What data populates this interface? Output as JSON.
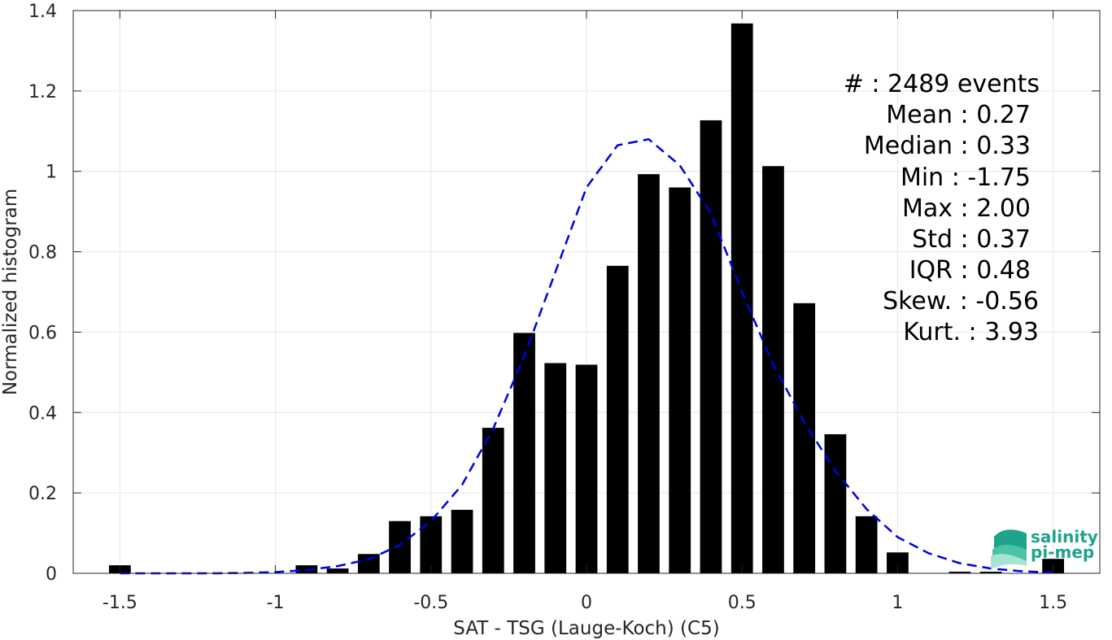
{
  "chart_data": {
    "type": "bar",
    "xlabel": "SAT - TSG (Lauge-Koch) (C5)",
    "ylabel": "Normalized histogram",
    "xlim": [
      -1.65,
      1.65
    ],
    "ylim": [
      0,
      1.4
    ],
    "xticks": [
      -1.5,
      -1,
      -0.5,
      0,
      0.5,
      1,
      1.5
    ],
    "xtick_labels": [
      "-1.5",
      "-1",
      "-0.5",
      "0",
      "0.5",
      "1",
      "1.5"
    ],
    "yticks": [
      0,
      0.2,
      0.4,
      0.6,
      0.8,
      1,
      1.2,
      1.4
    ],
    "ytick_labels": [
      "0",
      "0.2",
      "0.4",
      "0.6",
      "0.8",
      "1",
      "1.2",
      "1.4"
    ],
    "grid": true,
    "bar_width": 0.07,
    "series": [
      {
        "kind": "histogram",
        "color": "#000000",
        "x": [
          -1.5,
          -0.9,
          -0.8,
          -0.7,
          -0.6,
          -0.5,
          -0.4,
          -0.3,
          -0.2,
          -0.1,
          0.0,
          0.1,
          0.2,
          0.3,
          0.4,
          0.5,
          0.6,
          0.7,
          0.8,
          0.9,
          1.0,
          1.2,
          1.3,
          1.5
        ],
        "values": [
          0.02,
          0.02,
          0.012,
          0.048,
          0.13,
          0.142,
          0.158,
          0.362,
          0.598,
          0.523,
          0.519,
          0.765,
          0.993,
          0.96,
          1.127,
          1.368,
          1.013,
          0.672,
          0.346,
          0.142,
          0.052,
          0.004,
          0.004,
          0.036
        ]
      },
      {
        "kind": "fit-line",
        "style": "dashed",
        "color": "#0000e6",
        "x": [
          -1.5,
          -1.4,
          -1.3,
          -1.2,
          -1.1,
          -1.0,
          -0.9,
          -0.8,
          -0.7,
          -0.6,
          -0.5,
          -0.4,
          -0.3,
          -0.2,
          -0.1,
          0.0,
          0.1,
          0.2,
          0.3,
          0.4,
          0.5,
          0.6,
          0.7,
          0.8,
          0.9,
          1.0,
          1.1,
          1.2,
          1.3,
          1.4,
          1.5
        ],
        "values": [
          0.0,
          0.0,
          0.0,
          0.0,
          0.001,
          0.003,
          0.008,
          0.018,
          0.035,
          0.07,
          0.13,
          0.22,
          0.36,
          0.54,
          0.75,
          0.96,
          1.065,
          1.08,
          1.015,
          0.895,
          0.7,
          0.52,
          0.375,
          0.255,
          0.16,
          0.09,
          0.05,
          0.025,
          0.012,
          0.005,
          0.002
        ]
      }
    ],
    "annotations": [
      "#  : 2489 events",
      "Mean : 0.27",
      "Median : 0.33",
      "Min : -1.75",
      "Max : 2.00",
      "Std : 0.37",
      "IQR : 0.48",
      "Skew. : -0.56",
      "Kurt. : 3.93"
    ]
  },
  "logo": {
    "line1": "salinity",
    "line2": "pi-mep",
    "color": "#1fa38a"
  }
}
